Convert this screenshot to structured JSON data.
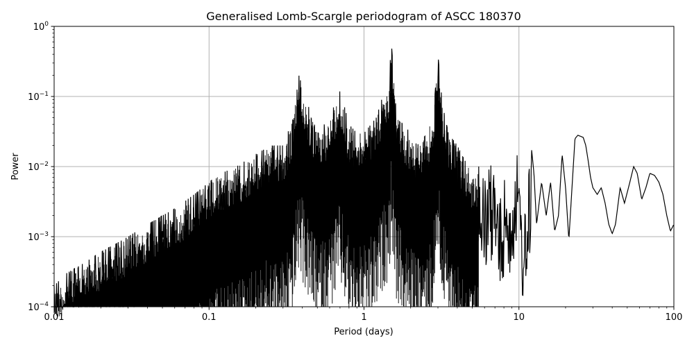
{
  "chart_data": {
    "type": "line",
    "title": "Generalised Lomb-Scargle periodogram of ASCC 180370",
    "xlabel": "Period (days)",
    "ylabel": "Power",
    "xscale": "log",
    "yscale": "log",
    "xlim": [
      0.01,
      100
    ],
    "ylim": [
      0.0001,
      1
    ],
    "grid": true,
    "line_color": "#000000",
    "x_ticks": [
      {
        "value": 0.01,
        "label": "0.01"
      },
      {
        "value": 0.1,
        "label": "0.1"
      },
      {
        "value": 1,
        "label": "1"
      },
      {
        "value": 10,
        "label": "10"
      },
      {
        "value": 100,
        "label": "100"
      }
    ],
    "y_ticks": [
      {
        "value": 0.0001,
        "mantissa": "10",
        "exponent": "−4"
      },
      {
        "value": 0.001,
        "mantissa": "10",
        "exponent": "−3"
      },
      {
        "value": 0.01,
        "mantissa": "10",
        "exponent": "−2"
      },
      {
        "value": 0.1,
        "mantissa": "10",
        "exponent": "−1"
      },
      {
        "value": 1,
        "mantissa": "10",
        "exponent": "0"
      }
    ],
    "series": [
      {
        "x": [
          0.01,
          0.012,
          0.015,
          0.02,
          0.03,
          0.04,
          0.05,
          0.06,
          0.08,
          0.1,
          0.12,
          0.15,
          0.2,
          0.25,
          0.3,
          0.35,
          0.38,
          0.45,
          0.5,
          0.6,
          0.65,
          0.7,
          0.75,
          0.8,
          0.9,
          1.0,
          1.2,
          1.35,
          1.45,
          1.5,
          1.6,
          1.8,
          2.0,
          2.2,
          2.5,
          2.8,
          3.0,
          3.2,
          3.5,
          4.0,
          4.5,
          5.0,
          5.5,
          6.0,
          6.5,
          7.0,
          7.5,
          8.0,
          8.5,
          9.0,
          9.5,
          10.0,
          10.5,
          11.0,
          12.0,
          12.5,
          13.0,
          14.0,
          15.0,
          16.0,
          17.0,
          18.0,
          19.0,
          20.0,
          21.0,
          22.0,
          23.0,
          24.0,
          25.0,
          26.0,
          27.0,
          28.0,
          29.0,
          30.0,
          32.0,
          34.0,
          36.0,
          38.0,
          40.0,
          42.0,
          45.0,
          48.0,
          52.0,
          55.0,
          58.0,
          62.0,
          66.0,
          70.0,
          75.0,
          80.0,
          85.0,
          90.0,
          95.0,
          100.0
        ],
        "y": [
          0.0002,
          0.0003,
          0.0004,
          0.0006,
          0.001,
          0.0015,
          0.002,
          0.0025,
          0.004,
          0.006,
          0.008,
          0.01,
          0.015,
          0.02,
          0.02,
          0.05,
          0.2,
          0.06,
          0.03,
          0.05,
          0.08,
          0.12,
          0.07,
          0.04,
          0.03,
          0.03,
          0.05,
          0.12,
          0.15,
          0.6,
          0.08,
          0.04,
          0.03,
          0.02,
          0.03,
          0.05,
          0.4,
          0.08,
          0.03,
          0.02,
          0.012,
          0.008,
          0.01,
          0.006,
          0.01,
          0.012,
          0.003,
          0.006,
          0.01,
          0.005,
          0.02,
          0.01,
          0.003,
          0.002,
          0.02,
          0.008,
          0.0015,
          0.006,
          0.002,
          0.006,
          0.0012,
          0.002,
          0.015,
          0.005,
          0.0009,
          0.005,
          0.025,
          0.028,
          0.027,
          0.026,
          0.02,
          0.012,
          0.007,
          0.005,
          0.004,
          0.005,
          0.003,
          0.0015,
          0.0011,
          0.0015,
          0.005,
          0.003,
          0.006,
          0.01,
          0.008,
          0.0034,
          0.005,
          0.008,
          0.0075,
          0.006,
          0.004,
          0.002,
          0.0012,
          0.0015
        ]
      }
    ]
  }
}
